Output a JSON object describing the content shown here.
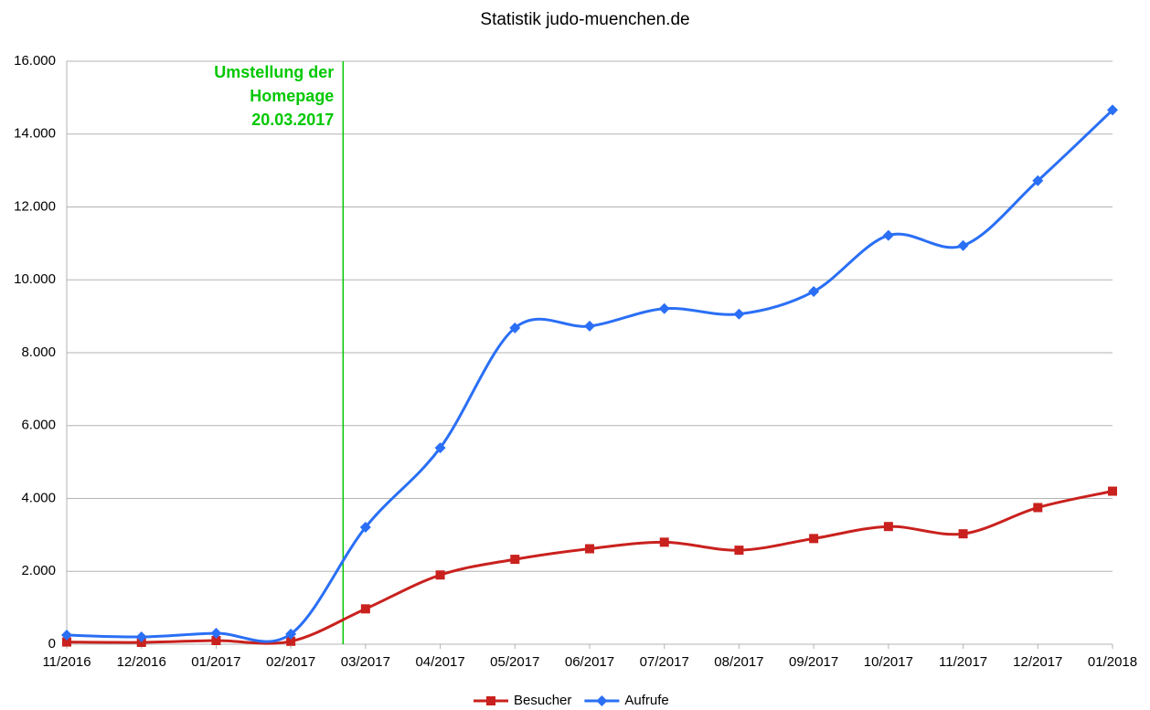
{
  "chart_data": {
    "type": "line",
    "title": "Statistik judo-muenchen.de",
    "categories": [
      "11/2016",
      "12/2016",
      "01/2017",
      "02/2017",
      "03/2017",
      "04/2017",
      "05/2017",
      "06/2017",
      "07/2017",
      "08/2017",
      "09/2017",
      "10/2017",
      "11/2017",
      "12/2017",
      "01/2018"
    ],
    "series": [
      {
        "name": "Besucher",
        "color": "#c9211e",
        "marker": "square",
        "values": [
          60,
          50,
          100,
          80,
          970,
          1900,
          2330,
          2620,
          2800,
          2580,
          2900,
          3230,
          3030,
          3750,
          4200
        ]
      },
      {
        "name": "Aufrufe",
        "color": "#2a6ff5",
        "marker": "diamond",
        "values": [
          250,
          200,
          300,
          280,
          3210,
          5390,
          8680,
          8730,
          9210,
          9060,
          9680,
          11220,
          10940,
          12720,
          14660
        ]
      }
    ],
    "ylim": [
      0,
      16000
    ],
    "yticks": [
      0,
      {
        "value": 2000,
        "label": "2.000"
      },
      {
        "value": 4000,
        "label": "4.000"
      },
      {
        "value": 6000,
        "label": "6.000"
      },
      {
        "value": 8000,
        "label": "8.000"
      },
      {
        "value": 10000,
        "label": "10.000"
      },
      {
        "value": 12000,
        "label": "12.000"
      },
      {
        "value": 14000,
        "label": "14.000"
      },
      {
        "value": 16000,
        "label": "16.000"
      }
    ],
    "grid": true,
    "smooth": true,
    "legend": "bottom",
    "annotation": {
      "lines": [
        "Umstellung der",
        "Homepage",
        "20.03.2017"
      ],
      "x": 3.7,
      "color": "#00c800"
    }
  }
}
